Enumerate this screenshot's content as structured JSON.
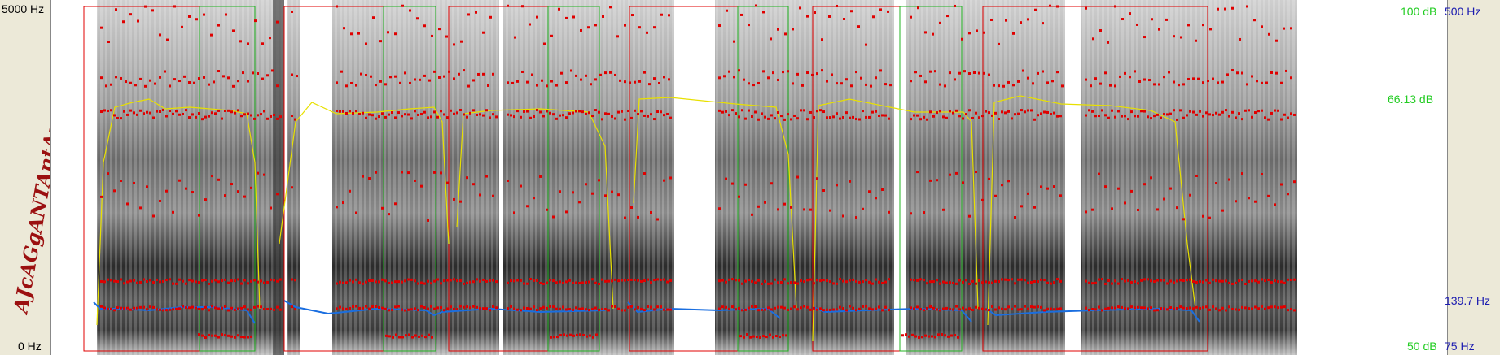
{
  "axes": {
    "left_top": "5000 Hz",
    "left_bottom": "0 Hz",
    "right_db_top": "100 dB",
    "right_db_mid": "66.13 dB",
    "right_db_bottom": "50 dB",
    "right_hz_top": "500 Hz",
    "right_hz_mid": "139.7 Hz",
    "right_hz_bottom": "75 Hz"
  },
  "annotation": "AJcAGgANTAntAmpA",
  "colors": {
    "formant": "#e00000",
    "pitch": "#1a6ee0",
    "intensity": "#e8e000",
    "segment_red": "#e00000",
    "segment_green": "#22b322",
    "db_text": "#22cc22",
    "hz_text": "#1a1ab0",
    "annotation": "#9b1010"
  }
}
